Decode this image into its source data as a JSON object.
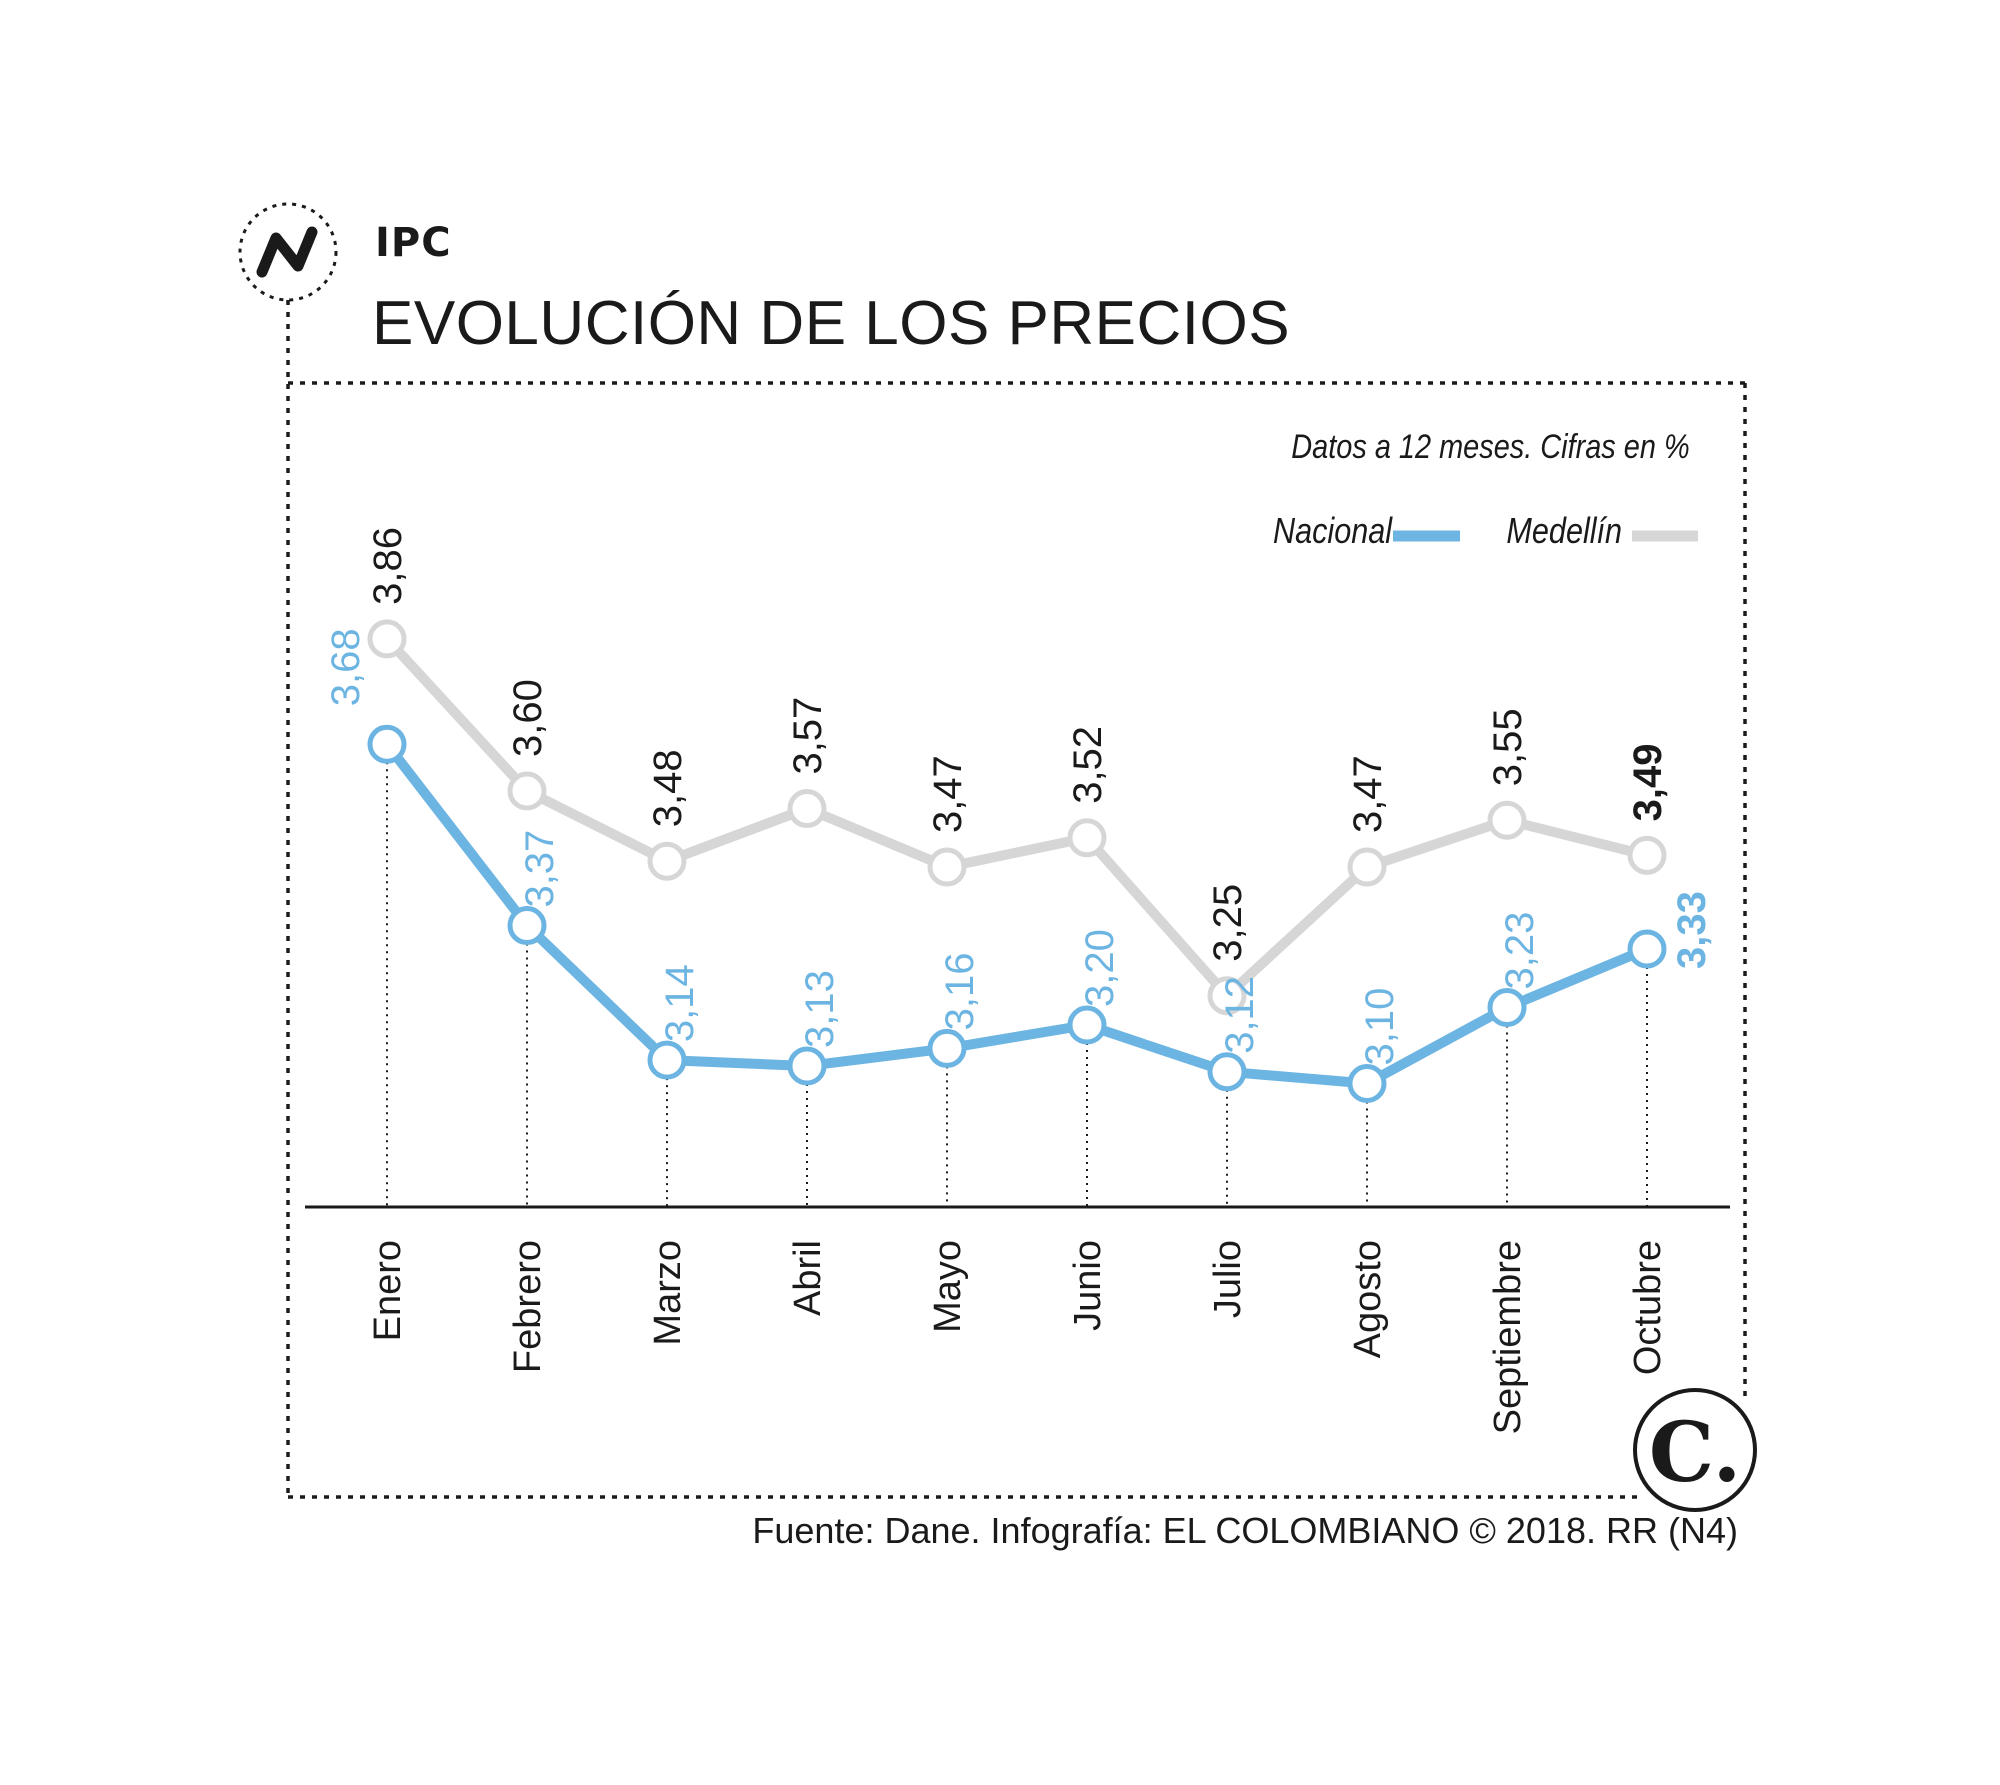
{
  "header": {
    "kicker": "IPC",
    "title": "EVOLUCIÓN DE LOS PRECIOS",
    "logo_icon": "trend-n-icon"
  },
  "subtitle": "Datos a 12 meses. Cifras en %",
  "legend": {
    "nacional": "Nacional",
    "medellin": "Medellín"
  },
  "colors": {
    "nacional": "#6cb4e2",
    "medellin": "#d6d6d6",
    "text": "#1a1a1a"
  },
  "brand_logo": "C.",
  "source": "Fuente:  Dane. Infografía: EL COLOMBIANO © 2018. RR (N4)",
  "chart_data": {
    "type": "line",
    "categories": [
      "Enero",
      "Febrero",
      "Marzo",
      "Abril",
      "Mayo",
      "Junio",
      "Julio",
      "Agosto",
      "Septiembre",
      "Octubre"
    ],
    "series": [
      {
        "name": "Medellín",
        "values": [
          3.86,
          3.6,
          3.48,
          3.57,
          3.47,
          3.52,
          3.25,
          3.47,
          3.55,
          3.49
        ],
        "labels": [
          "3,86",
          "3,60",
          "3,48",
          "3,57",
          "3,47",
          "3,52",
          "3,25",
          "3,47",
          "3,55",
          "3,49"
        ]
      },
      {
        "name": "Nacional",
        "values": [
          3.68,
          3.37,
          3.14,
          3.13,
          3.16,
          3.2,
          3.12,
          3.1,
          3.23,
          3.33
        ],
        "labels": [
          "3,68",
          "3,37",
          "3,14",
          "3,13",
          "3,16",
          "3,20",
          "3,12",
          "3,10",
          "3,23",
          "3,33"
        ]
      }
    ],
    "unit": "%",
    "ylim": [
      2.9,
      3.95
    ],
    "grid": false,
    "legend_position": "top-right"
  }
}
